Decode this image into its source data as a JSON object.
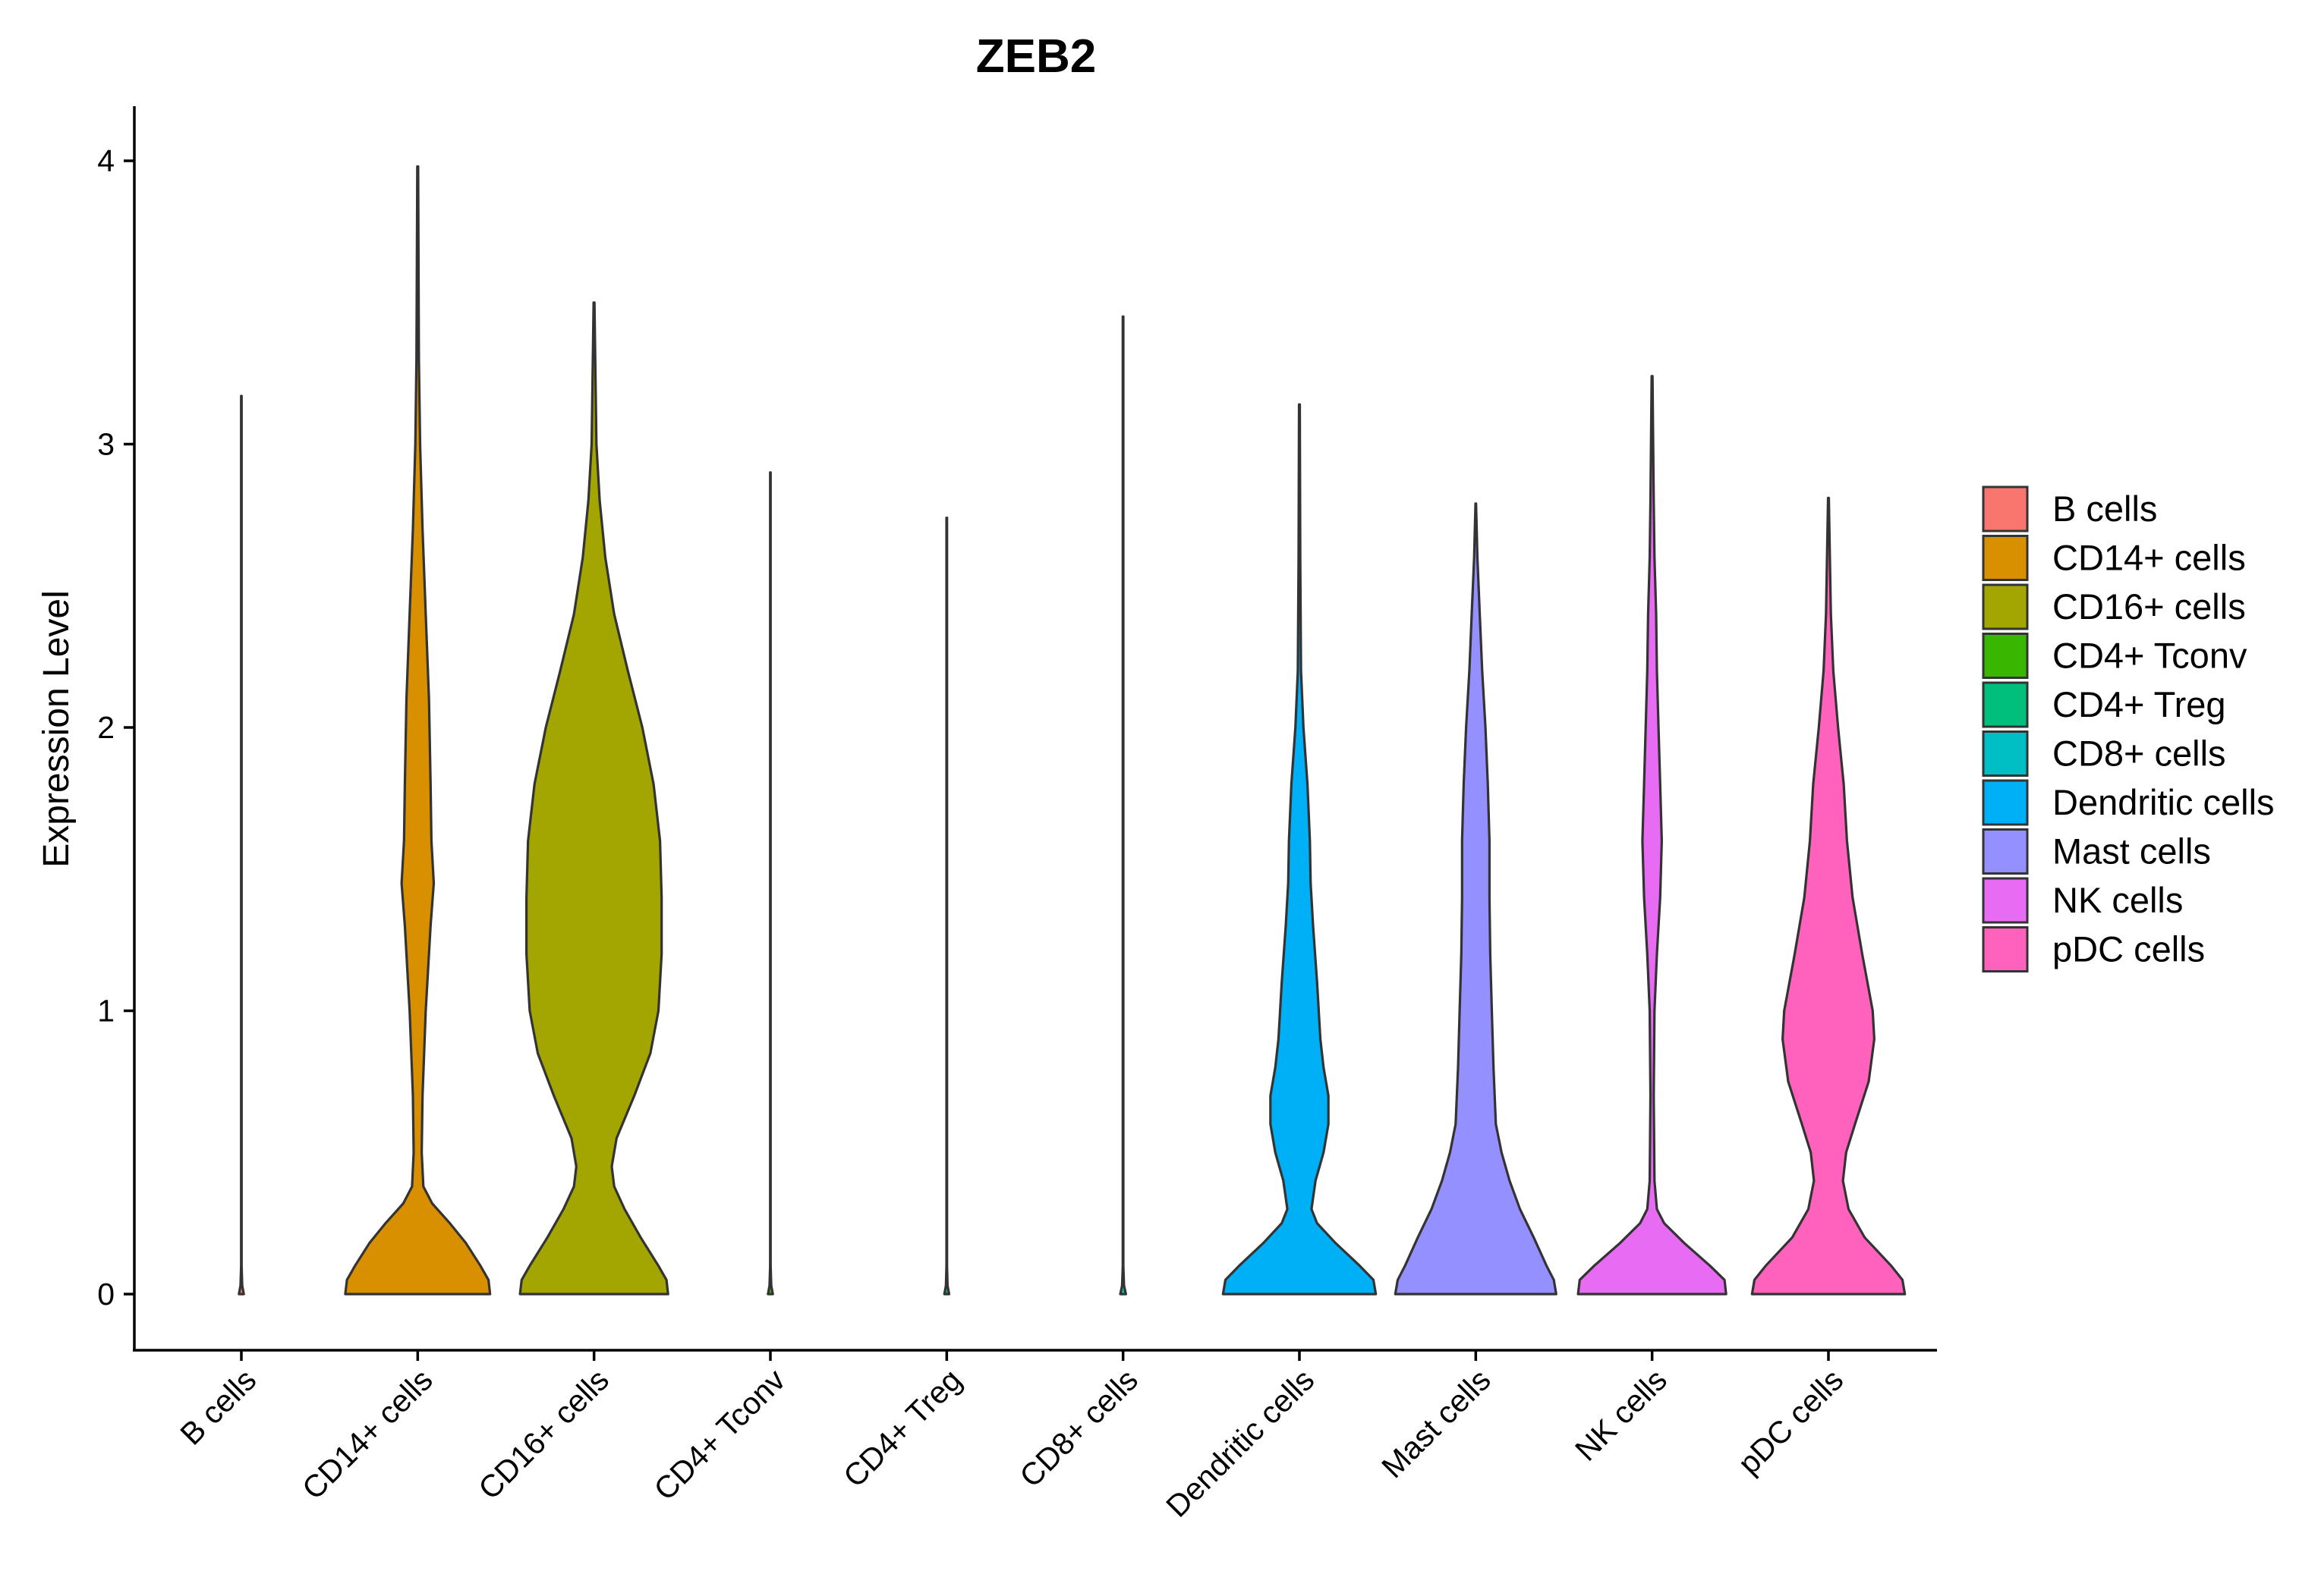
{
  "chart_data": {
    "type": "violin",
    "title": "ZEB2",
    "xlabel": "",
    "ylabel": "Expression Level",
    "ylim": [
      -0.2,
      4.2
    ],
    "yticks": [
      0,
      1,
      2,
      3,
      4
    ],
    "grid": false,
    "legend_position": "right",
    "categories": [
      "B cells",
      "CD14+ cells",
      "CD16+ cells",
      "CD4+ Tconv",
      "CD4+ Treg",
      "CD8+ cells",
      "Dendritic cells",
      "Mast cells",
      "NK cells",
      "pDC cells"
    ],
    "colors": [
      "#F8766D",
      "#D89000",
      "#A3A500",
      "#39B600",
      "#00BF7D",
      "#00BFC4",
      "#00B0F6",
      "#9590FF",
      "#E76BF3",
      "#FF62BC"
    ],
    "series": [
      {
        "name": "B cells",
        "max": 3.17,
        "profile": [
          [
            0,
            0.03
          ],
          [
            0.03,
            0.01
          ],
          [
            0.1,
            0.003
          ],
          [
            3.17,
            0.003
          ]
        ]
      },
      {
        "name": "CD14+ cells",
        "max": 3.98,
        "profile": [
          [
            0,
            0.9
          ],
          [
            0.05,
            0.88
          ],
          [
            0.1,
            0.78
          ],
          [
            0.18,
            0.6
          ],
          [
            0.25,
            0.4
          ],
          [
            0.32,
            0.18
          ],
          [
            0.38,
            0.07
          ],
          [
            0.5,
            0.05
          ],
          [
            0.7,
            0.06
          ],
          [
            1.0,
            0.1
          ],
          [
            1.3,
            0.16
          ],
          [
            1.45,
            0.2
          ],
          [
            1.6,
            0.17
          ],
          [
            1.8,
            0.16
          ],
          [
            2.1,
            0.14
          ],
          [
            2.4,
            0.1
          ],
          [
            2.7,
            0.06
          ],
          [
            3.0,
            0.03
          ],
          [
            3.3,
            0.015
          ],
          [
            3.98,
            0.005
          ]
        ]
      },
      {
        "name": "CD16+ cells",
        "max": 3.5,
        "profile": [
          [
            0,
            0.92
          ],
          [
            0.05,
            0.9
          ],
          [
            0.1,
            0.8
          ],
          [
            0.2,
            0.58
          ],
          [
            0.3,
            0.38
          ],
          [
            0.38,
            0.25
          ],
          [
            0.45,
            0.22
          ],
          [
            0.55,
            0.28
          ],
          [
            0.7,
            0.5
          ],
          [
            0.85,
            0.7
          ],
          [
            1.0,
            0.8
          ],
          [
            1.2,
            0.84
          ],
          [
            1.4,
            0.84
          ],
          [
            1.6,
            0.82
          ],
          [
            1.8,
            0.74
          ],
          [
            2.0,
            0.6
          ],
          [
            2.2,
            0.42
          ],
          [
            2.4,
            0.25
          ],
          [
            2.6,
            0.14
          ],
          [
            2.8,
            0.07
          ],
          [
            3.0,
            0.03
          ],
          [
            3.5,
            0.005
          ]
        ]
      },
      {
        "name": "CD4+ Tconv",
        "max": 2.9,
        "profile": [
          [
            0,
            0.03
          ],
          [
            0.03,
            0.01
          ],
          [
            0.1,
            0.003
          ],
          [
            2.9,
            0.003
          ]
        ]
      },
      {
        "name": "CD4+ Treg",
        "max": 2.74,
        "profile": [
          [
            0,
            0.03
          ],
          [
            0.03,
            0.01
          ],
          [
            0.1,
            0.003
          ],
          [
            2.74,
            0.003
          ]
        ]
      },
      {
        "name": "CD8+ cells",
        "max": 3.45,
        "profile": [
          [
            0,
            0.035
          ],
          [
            0.03,
            0.012
          ],
          [
            0.1,
            0.003
          ],
          [
            3.45,
            0.003
          ]
        ]
      },
      {
        "name": "Dendritic cells",
        "max": 3.14,
        "profile": [
          [
            0,
            0.95
          ],
          [
            0.05,
            0.92
          ],
          [
            0.1,
            0.75
          ],
          [
            0.18,
            0.45
          ],
          [
            0.25,
            0.22
          ],
          [
            0.3,
            0.15
          ],
          [
            0.4,
            0.2
          ],
          [
            0.5,
            0.3
          ],
          [
            0.6,
            0.36
          ],
          [
            0.7,
            0.36
          ],
          [
            0.8,
            0.3
          ],
          [
            0.9,
            0.26
          ],
          [
            1.1,
            0.22
          ],
          [
            1.3,
            0.17
          ],
          [
            1.45,
            0.14
          ],
          [
            1.6,
            0.13
          ],
          [
            1.8,
            0.1
          ],
          [
            2.0,
            0.05
          ],
          [
            2.2,
            0.02
          ],
          [
            2.6,
            0.01
          ],
          [
            3.14,
            0.005
          ]
        ]
      },
      {
        "name": "Mast cells",
        "max": 2.79,
        "profile": [
          [
            0,
            1.0
          ],
          [
            0.05,
            0.97
          ],
          [
            0.1,
            0.88
          ],
          [
            0.2,
            0.72
          ],
          [
            0.3,
            0.55
          ],
          [
            0.4,
            0.42
          ],
          [
            0.5,
            0.32
          ],
          [
            0.6,
            0.25
          ],
          [
            0.8,
            0.22
          ],
          [
            1.0,
            0.2
          ],
          [
            1.2,
            0.18
          ],
          [
            1.4,
            0.17
          ],
          [
            1.6,
            0.17
          ],
          [
            1.8,
            0.15
          ],
          [
            2.0,
            0.12
          ],
          [
            2.2,
            0.08
          ],
          [
            2.4,
            0.05
          ],
          [
            2.6,
            0.02
          ],
          [
            2.79,
            0.003
          ]
        ]
      },
      {
        "name": "NK cells",
        "max": 3.24,
        "profile": [
          [
            0,
            0.92
          ],
          [
            0.05,
            0.9
          ],
          [
            0.1,
            0.72
          ],
          [
            0.18,
            0.4
          ],
          [
            0.25,
            0.15
          ],
          [
            0.3,
            0.06
          ],
          [
            0.4,
            0.03
          ],
          [
            0.7,
            0.02
          ],
          [
            1.0,
            0.03
          ],
          [
            1.2,
            0.06
          ],
          [
            1.4,
            0.1
          ],
          [
            1.6,
            0.12
          ],
          [
            1.8,
            0.1
          ],
          [
            2.0,
            0.08
          ],
          [
            2.2,
            0.06
          ],
          [
            2.4,
            0.05
          ],
          [
            2.6,
            0.03
          ],
          [
            2.8,
            0.02
          ],
          [
            3.24,
            0.005
          ]
        ]
      },
      {
        "name": "pDC cells",
        "max": 2.81,
        "profile": [
          [
            0,
            0.95
          ],
          [
            0.05,
            0.92
          ],
          [
            0.1,
            0.78
          ],
          [
            0.2,
            0.45
          ],
          [
            0.3,
            0.25
          ],
          [
            0.4,
            0.18
          ],
          [
            0.5,
            0.22
          ],
          [
            0.6,
            0.33
          ],
          [
            0.75,
            0.5
          ],
          [
            0.9,
            0.57
          ],
          [
            1.0,
            0.55
          ],
          [
            1.2,
            0.42
          ],
          [
            1.4,
            0.3
          ],
          [
            1.6,
            0.23
          ],
          [
            1.8,
            0.19
          ],
          [
            2.0,
            0.12
          ],
          [
            2.2,
            0.06
          ],
          [
            2.4,
            0.03
          ],
          [
            2.81,
            0.005
          ]
        ]
      }
    ]
  }
}
